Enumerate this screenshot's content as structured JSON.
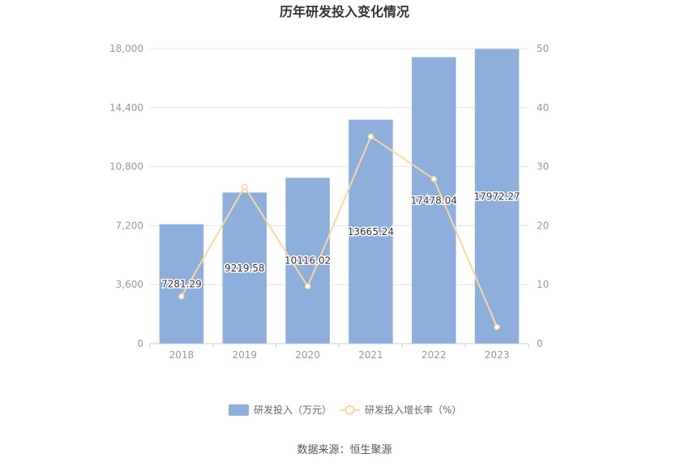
{
  "chart_data": {
    "type": "bar",
    "title": "历年研发投入变化情况",
    "categories": [
      "2018",
      "2019",
      "2020",
      "2021",
      "2022",
      "2023"
    ],
    "series": [
      {
        "name": "研发投入（万元）",
        "type": "bar",
        "axis": "left",
        "values": [
          7281.29,
          9219.58,
          10116.02,
          13665.24,
          17478.04,
          17972.27
        ],
        "labels": [
          "7281.29",
          "9219.58",
          "10116.02",
          "13665.24",
          "17478.04",
          "17972.27"
        ],
        "color": "#8eaedb"
      },
      {
        "name": "研发投入增长率（%）",
        "type": "line",
        "axis": "right",
        "values": [
          8.0,
          26.6,
          9.7,
          35.1,
          27.9,
          2.8
        ],
        "color": "#f9d9a2"
      }
    ],
    "y_left": {
      "ylim": [
        0,
        18000
      ],
      "ticks": [
        "0",
        "3,600",
        "7,200",
        "10,800",
        "14,400",
        "18,000"
      ],
      "tick_values": [
        0,
        3600,
        7200,
        10800,
        14400,
        18000
      ]
    },
    "y_right": {
      "ylim": [
        0,
        50
      ],
      "ticks": [
        "0",
        "10",
        "20",
        "30",
        "40",
        "50"
      ],
      "tick_values": [
        0,
        10,
        20,
        30,
        40,
        50
      ]
    },
    "grid": true,
    "legend": "bottom"
  },
  "source_text": "数据来源：恒生聚源"
}
